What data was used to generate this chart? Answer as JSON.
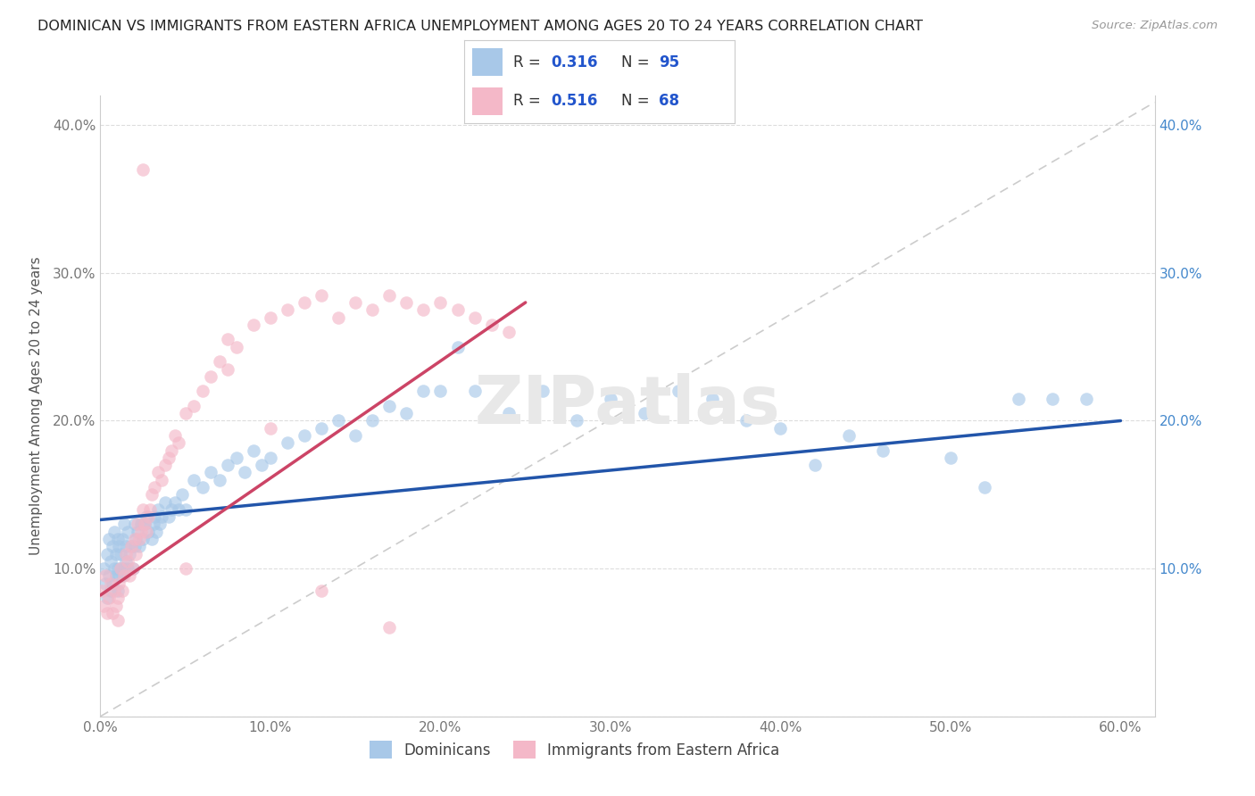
{
  "title": "DOMINICAN VS IMMIGRANTS FROM EASTERN AFRICA UNEMPLOYMENT AMONG AGES 20 TO 24 YEARS CORRELATION CHART",
  "source": "Source: ZipAtlas.com",
  "ylabel": "Unemployment Among Ages 20 to 24 years",
  "xlim": [
    0.0,
    0.62
  ],
  "ylim": [
    0.0,
    0.42
  ],
  "xticks": [
    0.0,
    0.1,
    0.2,
    0.3,
    0.4,
    0.5,
    0.6
  ],
  "xticklabels": [
    "0.0%",
    "10.0%",
    "20.0%",
    "30.0%",
    "40.0%",
    "50.0%",
    "60.0%"
  ],
  "yticks": [
    0.0,
    0.1,
    0.2,
    0.3,
    0.4
  ],
  "yticklabels_left": [
    "",
    "10.0%",
    "20.0%",
    "30.0%",
    "40.0%"
  ],
  "yticklabels_right": [
    "",
    "10.0%",
    "20.0%",
    "30.0%",
    "40.0%"
  ],
  "dominican_color": "#a8c8e8",
  "eastern_africa_color": "#f4b8c8",
  "trend_blue": "#2255aa",
  "trend_pink": "#cc4466",
  "trend_dashed_color": "#cccccc",
  "R_dominican": 0.316,
  "N_dominican": 95,
  "R_eastern": 0.516,
  "N_eastern": 68,
  "legend_color": "#2255cc",
  "background_color": "#ffffff",
  "watermark": "ZIPatlas",
  "blue_line_x0": 0.0,
  "blue_line_y0": 0.133,
  "blue_line_x1": 0.6,
  "blue_line_y1": 0.2,
  "pink_line_x0": 0.0,
  "pink_line_y0": 0.082,
  "pink_line_x1": 0.25,
  "pink_line_y1": 0.28,
  "dominican_x": [
    0.002,
    0.003,
    0.004,
    0.004,
    0.005,
    0.005,
    0.006,
    0.006,
    0.007,
    0.007,
    0.008,
    0.008,
    0.009,
    0.009,
    0.01,
    0.01,
    0.01,
    0.011,
    0.011,
    0.012,
    0.012,
    0.013,
    0.013,
    0.014,
    0.014,
    0.015,
    0.015,
    0.016,
    0.016,
    0.017,
    0.018,
    0.019,
    0.02,
    0.02,
    0.021,
    0.022,
    0.023,
    0.024,
    0.025,
    0.026,
    0.027,
    0.028,
    0.03,
    0.031,
    0.032,
    0.033,
    0.034,
    0.035,
    0.036,
    0.038,
    0.04,
    0.042,
    0.044,
    0.046,
    0.048,
    0.05,
    0.055,
    0.06,
    0.065,
    0.07,
    0.075,
    0.08,
    0.085,
    0.09,
    0.095,
    0.1,
    0.11,
    0.12,
    0.13,
    0.14,
    0.15,
    0.16,
    0.17,
    0.18,
    0.19,
    0.2,
    0.21,
    0.22,
    0.24,
    0.26,
    0.28,
    0.3,
    0.32,
    0.34,
    0.36,
    0.38,
    0.4,
    0.42,
    0.44,
    0.46,
    0.5,
    0.52,
    0.54,
    0.56,
    0.58
  ],
  "dominican_y": [
    0.1,
    0.09,
    0.11,
    0.08,
    0.12,
    0.095,
    0.105,
    0.085,
    0.115,
    0.09,
    0.1,
    0.125,
    0.095,
    0.11,
    0.085,
    0.1,
    0.12,
    0.095,
    0.115,
    0.1,
    0.11,
    0.095,
    0.12,
    0.1,
    0.13,
    0.105,
    0.115,
    0.1,
    0.125,
    0.11,
    0.115,
    0.1,
    0.13,
    0.115,
    0.12,
    0.125,
    0.115,
    0.13,
    0.12,
    0.13,
    0.135,
    0.125,
    0.12,
    0.13,
    0.135,
    0.125,
    0.14,
    0.13,
    0.135,
    0.145,
    0.135,
    0.14,
    0.145,
    0.14,
    0.15,
    0.14,
    0.16,
    0.155,
    0.165,
    0.16,
    0.17,
    0.175,
    0.165,
    0.18,
    0.17,
    0.175,
    0.185,
    0.19,
    0.195,
    0.2,
    0.19,
    0.2,
    0.21,
    0.205,
    0.22,
    0.22,
    0.25,
    0.22,
    0.205,
    0.22,
    0.2,
    0.215,
    0.205,
    0.22,
    0.215,
    0.2,
    0.195,
    0.17,
    0.19,
    0.18,
    0.175,
    0.155,
    0.215,
    0.215,
    0.215
  ],
  "eastern_x": [
    0.001,
    0.002,
    0.003,
    0.004,
    0.005,
    0.006,
    0.007,
    0.008,
    0.009,
    0.01,
    0.01,
    0.011,
    0.012,
    0.013,
    0.014,
    0.015,
    0.016,
    0.017,
    0.018,
    0.019,
    0.02,
    0.021,
    0.022,
    0.023,
    0.024,
    0.025,
    0.026,
    0.027,
    0.028,
    0.029,
    0.03,
    0.032,
    0.034,
    0.036,
    0.038,
    0.04,
    0.042,
    0.044,
    0.046,
    0.05,
    0.055,
    0.06,
    0.065,
    0.07,
    0.075,
    0.08,
    0.09,
    0.1,
    0.11,
    0.12,
    0.13,
    0.14,
    0.15,
    0.16,
    0.17,
    0.18,
    0.19,
    0.2,
    0.21,
    0.22,
    0.23,
    0.24,
    0.025,
    0.05,
    0.075,
    0.1,
    0.13,
    0.17
  ],
  "eastern_y": [
    0.085,
    0.075,
    0.095,
    0.07,
    0.08,
    0.09,
    0.07,
    0.085,
    0.075,
    0.065,
    0.08,
    0.09,
    0.1,
    0.085,
    0.095,
    0.11,
    0.105,
    0.095,
    0.115,
    0.1,
    0.12,
    0.11,
    0.13,
    0.12,
    0.125,
    0.14,
    0.13,
    0.125,
    0.135,
    0.14,
    0.15,
    0.155,
    0.165,
    0.16,
    0.17,
    0.175,
    0.18,
    0.19,
    0.185,
    0.205,
    0.21,
    0.22,
    0.23,
    0.24,
    0.235,
    0.25,
    0.265,
    0.27,
    0.275,
    0.28,
    0.285,
    0.27,
    0.28,
    0.275,
    0.285,
    0.28,
    0.275,
    0.28,
    0.275,
    0.27,
    0.265,
    0.26,
    0.37,
    0.1,
    0.255,
    0.195,
    0.085,
    0.06
  ]
}
